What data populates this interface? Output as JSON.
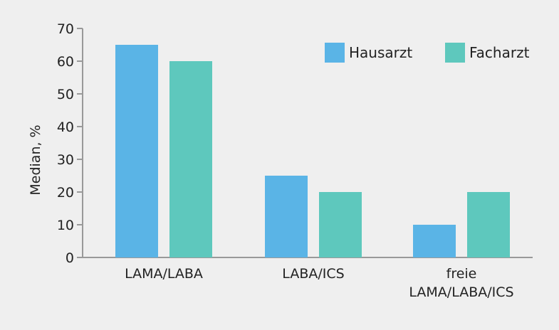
{
  "chart_data": {
    "type": "bar",
    "categories": [
      [
        "LAMA/LABA"
      ],
      [
        "LABA/ICS"
      ],
      [
        "freie",
        "LAMA/LABA/ICS"
      ]
    ],
    "series": [
      {
        "name": "Hausarzt",
        "color": "#5ab4e6",
        "values": [
          65,
          25,
          10
        ]
      },
      {
        "name": "Facharzt",
        "color": "#5ec8bd",
        "values": [
          60,
          20,
          20
        ]
      }
    ],
    "ylabel": "Median, %",
    "xlabel": "",
    "title": "",
    "ylim": [
      0,
      70
    ],
    "yticks": [
      0,
      10,
      20,
      30,
      40,
      50,
      60,
      70
    ],
    "grid": false,
    "legend_position": "top-right",
    "axis_color": "#999999",
    "background": "#efefef"
  }
}
